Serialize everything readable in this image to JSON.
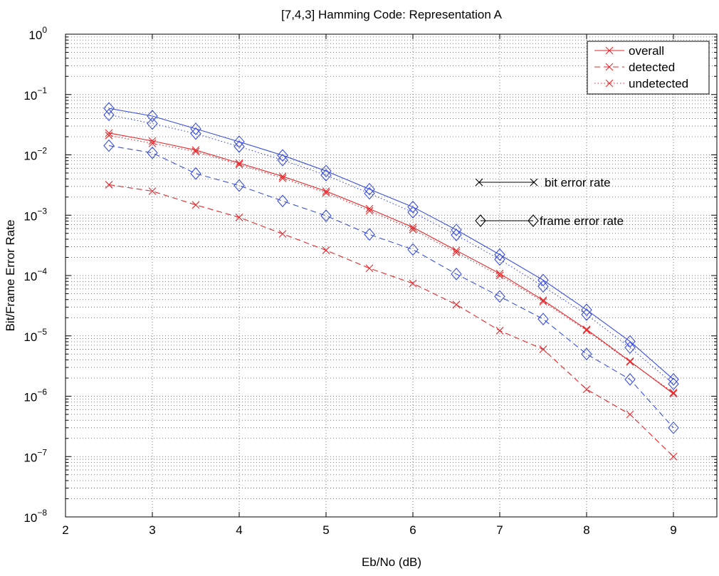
{
  "chart_data": {
    "type": "line",
    "title": "[7,4,3] Hamming Code: Representation A",
    "xlabel": "Eb/No (dB)",
    "ylabel": "Bit/Frame Error Rate",
    "xlim": [
      2,
      9.5
    ],
    "ylim_log10": [
      -8,
      0
    ],
    "y_scale": "log",
    "grid": true,
    "x_ticks": [
      2,
      3,
      4,
      5,
      6,
      7,
      8,
      9
    ],
    "x_tick_labels": [
      "2",
      "3",
      "4",
      "5",
      "6",
      "7",
      "8",
      "9"
    ],
    "y_tick_exponents": [
      0,
      -1,
      -2,
      -3,
      -4,
      -5,
      -6,
      -7,
      -8
    ],
    "y_tick_base": "10",
    "y_tick_labels": [
      "10^0",
      "10^-1",
      "10^-2",
      "10^-3",
      "10^-4",
      "10^-5",
      "10^-6",
      "10^-7",
      "10^-8"
    ],
    "x": [
      2.5,
      3,
      3.5,
      4,
      4.5,
      5,
      5.5,
      6,
      6.5,
      7,
      7.5,
      8,
      8.5,
      9
    ],
    "legend": {
      "placement": "top-right",
      "entries": [
        {
          "label": "overall",
          "dash": "solid"
        },
        {
          "label": "detected",
          "dash": "dashed"
        },
        {
          "label": "undetected",
          "dash": "dotted"
        }
      ]
    },
    "annotations": [
      {
        "label": "bit error rate",
        "marker": "x"
      },
      {
        "label": "frame error rate",
        "marker": "diamond"
      }
    ],
    "series": [
      {
        "name": "bit overall",
        "metric": "bit",
        "kind": "overall",
        "color": "#e8262a",
        "dash": "solid",
        "marker": "x",
        "values": [
          0.023,
          0.017,
          0.012,
          0.0073,
          0.0044,
          0.0025,
          0.00128,
          0.00063,
          0.00026,
          0.000108,
          3.9e-05,
          1.28e-05,
          3.8e-06,
          1.1e-06
        ]
      },
      {
        "name": "bit detected",
        "metric": "bit",
        "kind": "detected",
        "color": "#e8262a",
        "dash": "dashed",
        "marker": "x",
        "values": [
          0.0032,
          0.0025,
          0.00148,
          0.00092,
          0.00049,
          0.000262,
          0.000132,
          7.4e-05,
          3.3e-05,
          1.22e-05,
          6e-06,
          1.3e-06,
          5e-07,
          1e-07
        ]
      },
      {
        "name": "bit undetected",
        "metric": "bit",
        "kind": "undetected",
        "color": "#e8262a",
        "dash": "dotted",
        "marker": "x",
        "values": [
          0.021,
          0.0155,
          0.0113,
          0.0069,
          0.0041,
          0.00235,
          0.00118,
          0.00058,
          0.00024,
          0.0001,
          3.7e-05,
          1.23e-05,
          3.7e-06,
          1.15e-06
        ]
      },
      {
        "name": "frame overall",
        "metric": "frame",
        "kind": "overall",
        "color": "#3b4fe0",
        "dash": "solid",
        "marker": "diamond",
        "values": [
          0.059,
          0.044,
          0.027,
          0.0165,
          0.0098,
          0.0054,
          0.0027,
          0.00137,
          0.00057,
          0.000222,
          8.4e-05,
          2.7e-05,
          8.1e-06,
          1.9e-06
        ]
      },
      {
        "name": "frame detected",
        "metric": "frame",
        "kind": "detected",
        "color": "#3b4fe0",
        "dash": "dashed",
        "marker": "diamond",
        "values": [
          0.0142,
          0.0108,
          0.0049,
          0.0031,
          0.00172,
          0.00098,
          0.00048,
          0.00027,
          0.000106,
          4.5e-05,
          1.9e-05,
          5e-06,
          1.9e-06,
          3e-07
        ]
      },
      {
        "name": "frame undetected",
        "metric": "frame",
        "kind": "undetected",
        "color": "#3b4fe0",
        "dash": "dotted",
        "marker": "diamond",
        "values": [
          0.046,
          0.033,
          0.0225,
          0.0137,
          0.0082,
          0.0046,
          0.0023,
          0.00112,
          0.00047,
          0.000185,
          6.6e-05,
          2.25e-05,
          6.4e-06,
          1.6e-06
        ]
      }
    ]
  }
}
